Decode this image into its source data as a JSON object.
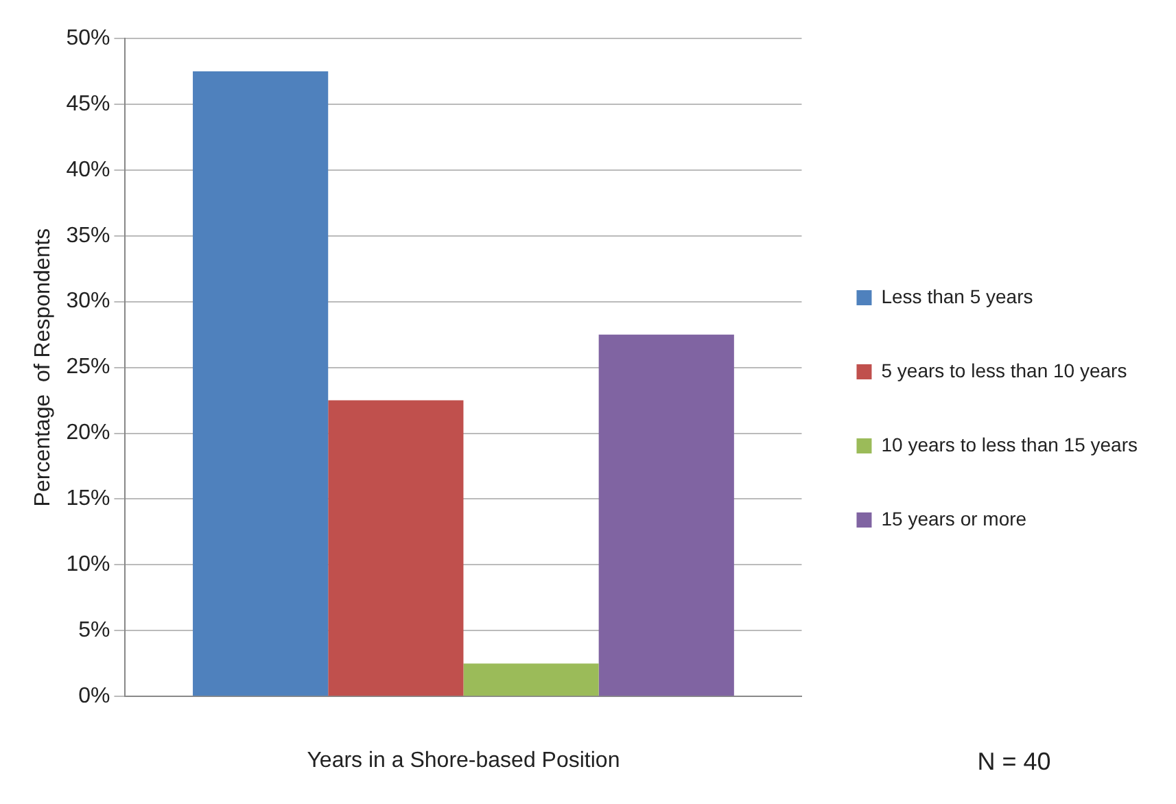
{
  "chart_data": {
    "type": "bar",
    "xlabel": "Years in a Shore-based Position",
    "ylabel": "Percentage  of Respondents",
    "categories": [
      null
    ],
    "series": [
      {
        "name": "Less than 5 years",
        "color": "#4f81bd",
        "values": [
          47.5
        ]
      },
      {
        "name": "5 years to less than 10 years",
        "color": "#c0504d",
        "values": [
          22.5
        ]
      },
      {
        "name": "10 years to less than 15 years",
        "color": "#9bbb59",
        "values": [
          2.5
        ]
      },
      {
        "name": "15 years or more",
        "color": "#8064a2",
        "values": [
          27.5
        ]
      }
    ],
    "ylim": [
      0,
      50
    ],
    "yticks": [
      {
        "value": 0,
        "label": "0%"
      },
      {
        "value": 5,
        "label": "5%"
      },
      {
        "value": 10,
        "label": "10%"
      },
      {
        "value": 15,
        "label": "15%"
      },
      {
        "value": 20,
        "label": "20%"
      },
      {
        "value": 25,
        "label": "25%"
      },
      {
        "value": 30,
        "label": "30%"
      },
      {
        "value": 35,
        "label": "35%"
      },
      {
        "value": 40,
        "label": "40%"
      },
      {
        "value": 45,
        "label": "45%"
      },
      {
        "value": 50,
        "label": "50%"
      }
    ],
    "grid": "y",
    "legend": "right",
    "annotations": [
      "N = 40"
    ]
  }
}
